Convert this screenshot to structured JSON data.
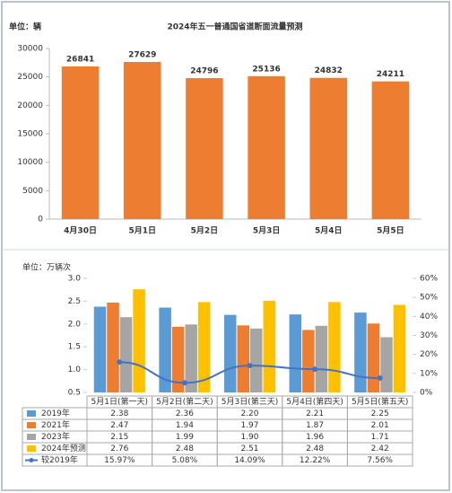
{
  "chart_data": [
    {
      "type": "bar",
      "title": "2024年五一普通国省道断面流量预测",
      "unit": "单位：辆",
      "categories": [
        "4月30日",
        "5月1日",
        "5月2日",
        "5月3日",
        "5月4日",
        "5月5日"
      ],
      "values": [
        26841,
        27629,
        24796,
        25136,
        24832,
        24211
      ],
      "color": "#ed7d31",
      "ylim": [
        0,
        30000
      ],
      "yticks": [
        0,
        5000,
        10000,
        15000,
        20000,
        25000,
        30000
      ]
    },
    {
      "type": "combo",
      "unit": "单位：万辆次",
      "categories": [
        "5月1日(第一天)",
        "5月2日(第二天)",
        "5月3日(第三天)",
        "5月4日(第四天)",
        "5月5日(第五天)"
      ],
      "ylim": [
        0.5,
        3.0
      ],
      "yticks": [
        0.5,
        {
          "value": 1,
          "label": "1.0"
        },
        1.5,
        {
          "value": 2,
          "label": "2.0"
        },
        2.5,
        {
          "value": 3,
          "label": "3.0"
        }
      ],
      "y2lim": [
        0,
        60
      ],
      "y2ticks": [
        {
          "value": 0,
          "label": "0%"
        },
        {
          "value": 10,
          "label": "10%"
        },
        {
          "value": 20,
          "label": "20%"
        },
        {
          "value": 30,
          "label": "30%"
        },
        {
          "value": 40,
          "label": "40%"
        },
        {
          "value": 50,
          "label": "50%"
        },
        {
          "value": 60,
          "label": "60%"
        }
      ],
      "series": [
        {
          "name": "2019年",
          "color": "#5b9bd5",
          "values": [
            2.38,
            2.36,
            2.2,
            2.21,
            2.25
          ],
          "value_labels": [
            "2.38",
            "2.36",
            "2.20",
            "2.21",
            "2.25"
          ]
        },
        {
          "name": "2021年",
          "color": "#ed7d31",
          "values": [
            2.47,
            1.94,
            1.97,
            1.87,
            2.01
          ],
          "value_labels": [
            "2.47",
            "1.94",
            "1.97",
            "1.87",
            "2.01"
          ]
        },
        {
          "name": "2023年",
          "color": "#a5a5a5",
          "values": [
            2.15,
            1.99,
            1.9,
            1.96,
            1.71
          ],
          "value_labels": [
            "2.15",
            "1.99",
            "1.90",
            "1.96",
            "1.71"
          ]
        },
        {
          "name": "2024年预测",
          "color": "#ffc000",
          "values": [
            2.76,
            2.48,
            2.51,
            2.48,
            2.42
          ],
          "value_labels": [
            "2.76",
            "2.48",
            "2.51",
            "2.48",
            "2.42"
          ]
        },
        {
          "name": "较2019年",
          "color": "#4472c4",
          "type": "line",
          "axis": "y2",
          "values": [
            15.97,
            5.08,
            14.09,
            12.22,
            7.56
          ],
          "value_labels": [
            "15.97%",
            "5.08%",
            "14.09%",
            "12.22%",
            "7.56%"
          ]
        }
      ]
    }
  ]
}
